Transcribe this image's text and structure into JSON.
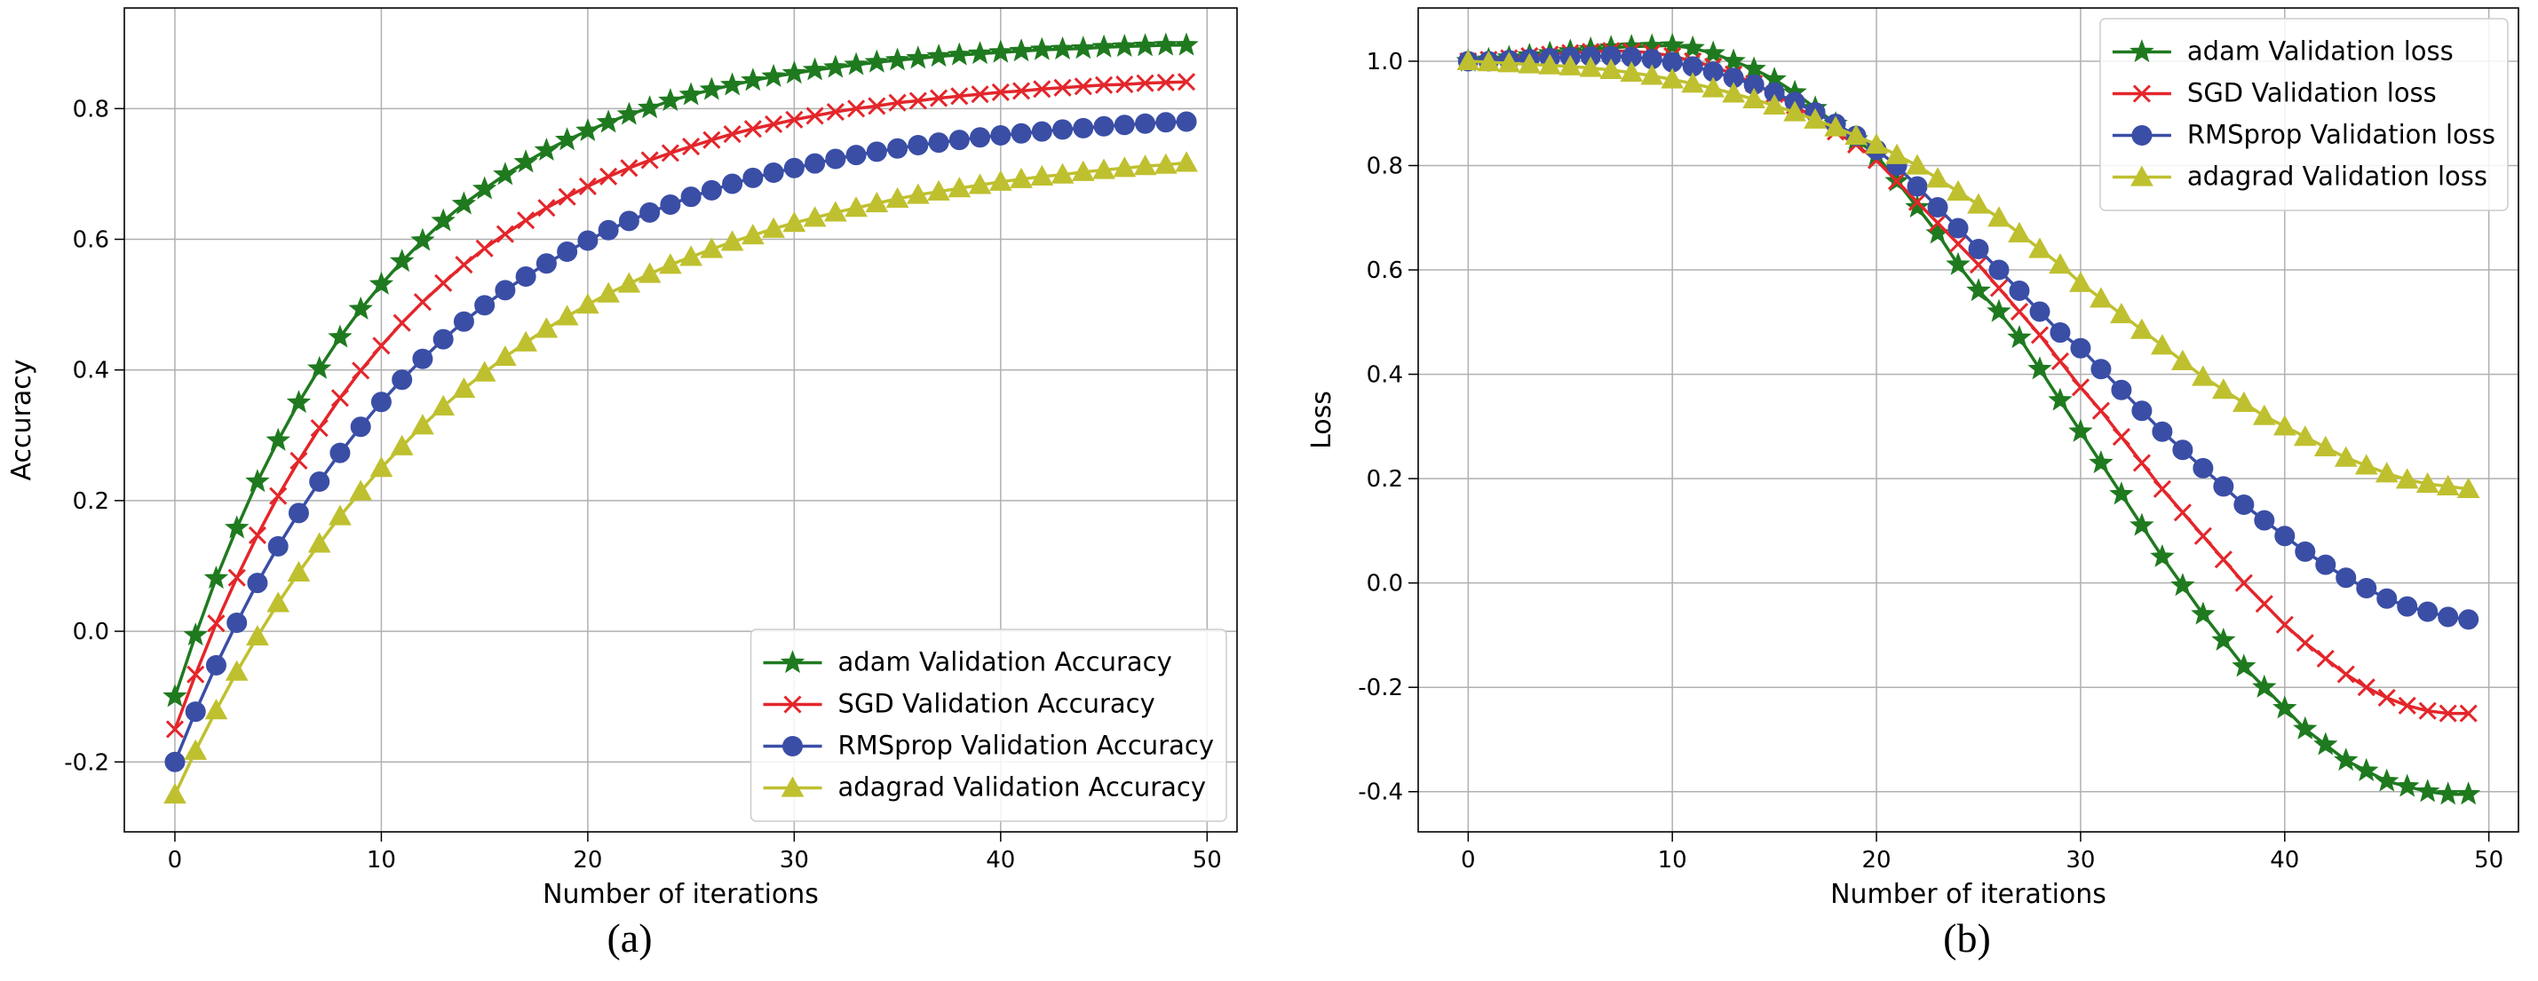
{
  "chart_data": [
    {
      "type": "line",
      "xlabel": "Number of iterations",
      "ylabel": "Accuracy",
      "caption": "(a)",
      "x": [
        0,
        1,
        2,
        3,
        4,
        5,
        6,
        7,
        8,
        9,
        10,
        11,
        12,
        13,
        14,
        15,
        16,
        17,
        18,
        19,
        20,
        21,
        22,
        23,
        24,
        25,
        26,
        27,
        28,
        29,
        30,
        31,
        32,
        33,
        34,
        35,
        36,
        37,
        38,
        39,
        40,
        41,
        42,
        43,
        44,
        45,
        46,
        47,
        48,
        49
      ],
      "xlim": [
        -2.45,
        51.45
      ],
      "xticks": [
        0,
        10,
        20,
        30,
        40,
        50
      ],
      "ylim": [
        -0.307,
        0.954
      ],
      "yticks": [
        -0.2,
        {
          "value": 0,
          "label": "0.0"
        },
        0.2,
        0.4,
        0.6,
        0.8
      ],
      "grid": true,
      "legend_loc": "lower right",
      "series": [
        {
          "name": "adam Validation Accuracy",
          "color": "#1f7a1f",
          "marker": "star",
          "values": [
            -0.1,
            -0.006,
            0.081,
            0.158,
            0.229,
            0.292,
            0.35,
            0.402,
            0.45,
            0.493,
            0.531,
            0.566,
            0.598,
            0.628,
            0.654,
            0.677,
            0.699,
            0.718,
            0.736,
            0.752,
            0.766,
            0.779,
            0.791,
            0.801,
            0.812,
            0.821,
            0.829,
            0.836,
            0.843,
            0.849,
            0.854,
            0.859,
            0.863,
            0.867,
            0.871,
            0.874,
            0.877,
            0.88,
            0.882,
            0.884,
            0.886,
            0.888,
            0.89,
            0.891,
            0.892,
            0.894,
            0.895,
            0.896,
            0.897,
            0.897
          ]
        },
        {
          "name": "SGD Validation Accuracy",
          "color": "#e3262b",
          "marker": "x",
          "values": [
            -0.15,
            -0.066,
            0.012,
            0.082,
            0.147,
            0.207,
            0.261,
            0.311,
            0.357,
            0.399,
            0.437,
            0.472,
            0.504,
            0.533,
            0.561,
            0.586,
            0.608,
            0.629,
            0.648,
            0.665,
            0.681,
            0.696,
            0.709,
            0.721,
            0.732,
            0.742,
            0.752,
            0.761,
            0.769,
            0.776,
            0.783,
            0.789,
            0.795,
            0.8,
            0.804,
            0.809,
            0.812,
            0.816,
            0.819,
            0.822,
            0.825,
            0.827,
            0.83,
            0.832,
            0.834,
            0.836,
            0.837,
            0.839,
            0.84,
            0.841
          ]
        },
        {
          "name": "RMSprop Validation Accuracy",
          "color": "#3a4ea6",
          "marker": "circle",
          "values": [
            -0.2,
            -0.123,
            -0.052,
            0.013,
            0.074,
            0.13,
            0.181,
            0.229,
            0.273,
            0.313,
            0.351,
            0.385,
            0.417,
            0.447,
            0.474,
            0.499,
            0.522,
            0.543,
            0.563,
            0.581,
            0.598,
            0.614,
            0.628,
            0.641,
            0.653,
            0.665,
            0.675,
            0.685,
            0.694,
            0.702,
            0.709,
            0.716,
            0.723,
            0.729,
            0.734,
            0.739,
            0.744,
            0.748,
            0.752,
            0.756,
            0.759,
            0.762,
            0.765,
            0.768,
            0.77,
            0.773,
            0.775,
            0.777,
            0.779,
            0.78
          ]
        },
        {
          "name": "adagrad Validation Accuracy",
          "color": "#bfc02f",
          "marker": "triangle",
          "values": [
            -0.25,
            -0.183,
            -0.121,
            -0.062,
            -0.008,
            0.043,
            0.09,
            0.134,
            0.176,
            0.214,
            0.25,
            0.283,
            0.315,
            0.344,
            0.371,
            0.396,
            0.42,
            0.442,
            0.463,
            0.482,
            0.5,
            0.517,
            0.532,
            0.547,
            0.561,
            0.573,
            0.585,
            0.596,
            0.606,
            0.616,
            0.625,
            0.633,
            0.641,
            0.648,
            0.655,
            0.662,
            0.668,
            0.673,
            0.678,
            0.683,
            0.688,
            0.692,
            0.696,
            0.699,
            0.703,
            0.706,
            0.709,
            0.712,
            0.714,
            0.717
          ]
        }
      ]
    },
    {
      "type": "line",
      "xlabel": "Number of iterations",
      "ylabel": "Loss",
      "caption": "(b)",
      "x": [
        0,
        1,
        2,
        3,
        4,
        5,
        6,
        7,
        8,
        9,
        10,
        11,
        12,
        13,
        14,
        15,
        16,
        17,
        18,
        19,
        20,
        21,
        22,
        23,
        24,
        25,
        26,
        27,
        28,
        29,
        30,
        31,
        32,
        33,
        34,
        35,
        36,
        37,
        38,
        39,
        40,
        41,
        42,
        43,
        44,
        45,
        46,
        47,
        48,
        49
      ],
      "xlim": [
        -2.45,
        51.45
      ],
      "xticks": [
        0,
        10,
        20,
        30,
        40,
        50
      ],
      "ylim": [
        -0.477,
        1.102
      ],
      "yticks": [
        -0.4,
        -0.2,
        {
          "value": 0,
          "label": "0.0"
        },
        0.2,
        0.4,
        0.6,
        0.8,
        {
          "value": 1,
          "label": "1.0"
        }
      ],
      "grid": true,
      "legend_loc": "upper right",
      "series": [
        {
          "name": "adam Validation loss",
          "color": "#1f7a1f",
          "marker": "star",
          "values": [
            1.0,
            1.003,
            1.007,
            1.011,
            1.015,
            1.019,
            1.023,
            1.026,
            1.028,
            1.029,
            1.03,
            1.025,
            1.015,
            1.0,
            0.985,
            0.965,
            0.94,
            0.91,
            0.88,
            0.85,
            0.82,
            0.77,
            0.72,
            0.67,
            0.61,
            0.56,
            0.52,
            0.47,
            0.41,
            0.35,
            0.29,
            0.23,
            0.17,
            0.11,
            0.05,
            -0.005,
            -0.06,
            -0.11,
            -0.16,
            -0.2,
            -0.24,
            -0.28,
            -0.31,
            -0.34,
            -0.36,
            -0.38,
            -0.39,
            -0.4,
            -0.405,
            -0.405
          ]
        },
        {
          "name": "SGD Validation loss",
          "color": "#e3262b",
          "marker": "x",
          "values": [
            1.0,
            1.003,
            1.006,
            1.01,
            1.013,
            1.016,
            1.018,
            1.02,
            1.019,
            1.016,
            1.01,
            1.0,
            0.99,
            0.975,
            0.957,
            0.937,
            0.915,
            0.89,
            0.865,
            0.84,
            0.81,
            0.77,
            0.73,
            0.69,
            0.65,
            0.61,
            0.565,
            0.52,
            0.475,
            0.425,
            0.375,
            0.33,
            0.28,
            0.23,
            0.18,
            0.135,
            0.09,
            0.045,
            0.0,
            -0.04,
            -0.08,
            -0.115,
            -0.145,
            -0.175,
            -0.2,
            -0.22,
            -0.235,
            -0.245,
            -0.25,
            -0.25
          ]
        },
        {
          "name": "RMSprop Validation loss",
          "color": "#3a4ea6",
          "marker": "circle",
          "values": [
            1.0,
            1.0,
            1.002,
            1.004,
            1.006,
            1.008,
            1.009,
            1.01,
            1.008,
            1.004,
            0.998,
            0.99,
            0.98,
            0.968,
            0.955,
            0.94,
            0.922,
            0.902,
            0.88,
            0.857,
            0.83,
            0.8,
            0.76,
            0.72,
            0.68,
            0.64,
            0.6,
            0.56,
            0.52,
            0.48,
            0.45,
            0.41,
            0.37,
            0.33,
            0.29,
            0.255,
            0.22,
            0.185,
            0.15,
            0.12,
            0.09,
            0.06,
            0.035,
            0.01,
            -0.01,
            -0.03,
            -0.045,
            -0.055,
            -0.065,
            -0.07
          ]
        },
        {
          "name": "adagrad Validation loss",
          "color": "#bfc02f",
          "marker": "triangle",
          "values": [
            1.0,
            0.998,
            0.996,
            0.994,
            0.992,
            0.99,
            0.987,
            0.983,
            0.978,
            0.972,
            0.965,
            0.957,
            0.948,
            0.938,
            0.927,
            0.915,
            0.902,
            0.888,
            0.873,
            0.857,
            0.84,
            0.82,
            0.8,
            0.775,
            0.75,
            0.725,
            0.7,
            0.67,
            0.64,
            0.61,
            0.575,
            0.545,
            0.515,
            0.485,
            0.455,
            0.425,
            0.395,
            0.37,
            0.345,
            0.32,
            0.3,
            0.28,
            0.26,
            0.24,
            0.225,
            0.21,
            0.198,
            0.19,
            0.185,
            0.18
          ]
        }
      ]
    }
  ]
}
